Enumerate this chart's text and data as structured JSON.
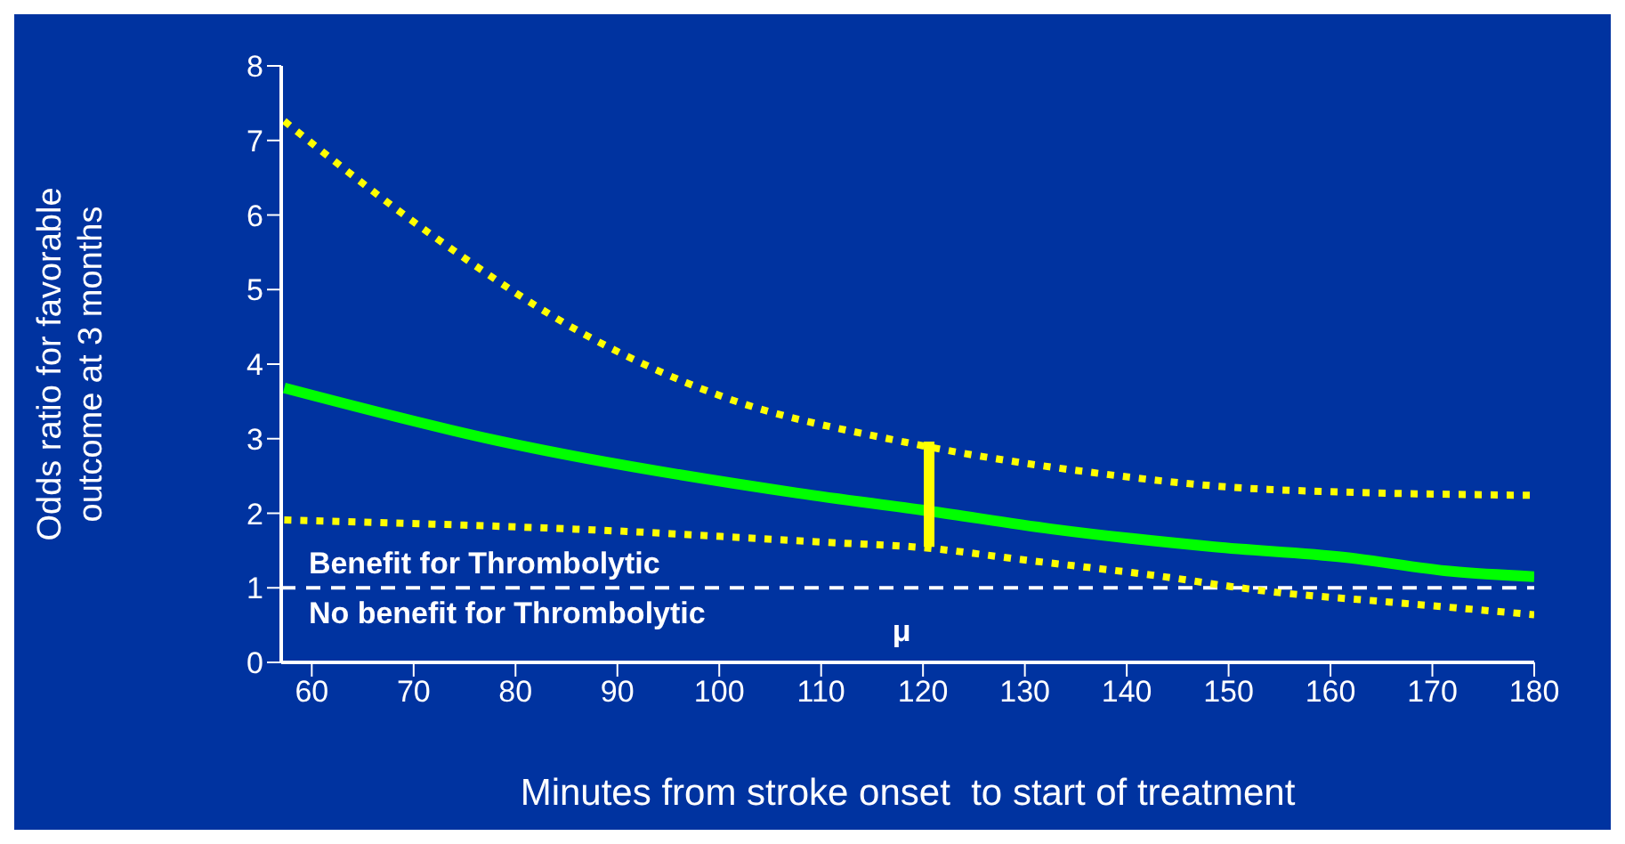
{
  "chart_data": {
    "type": "line",
    "xlabel": "Minutes from stroke onset  to start of treatment",
    "ylabel": "Odds ratio for favorable outcome at 3 months",
    "xlim": [
      57,
      180
    ],
    "xticks": [
      60,
      70,
      80,
      90,
      100,
      110,
      120,
      130,
      140,
      150,
      160,
      170,
      180
    ],
    "ylim": [
      0,
      8
    ],
    "yticks": [
      0,
      1,
      2,
      3,
      4,
      5,
      6,
      7,
      8
    ],
    "marker": "none",
    "series": [
      {
        "color": "#ffff00",
        "line_style": "dotted",
        "x": [
          57.3,
          71.3,
          86.5,
          100.4,
          118,
          136.4,
          153.9,
          180
        ],
        "values": [
          7.26,
          5.78,
          4.42,
          3.56,
          2.96,
          2.55,
          2.32,
          2.24
        ]
      },
      {
        "color": "#00ff00",
        "line_style": "solid",
        "x": [
          57.3,
          78,
          107.7,
          120.6,
          132.6,
          148.6,
          161.4,
          171.9,
          180
        ],
        "values": [
          3.68,
          2.98,
          2.27,
          2.03,
          1.79,
          1.55,
          1.41,
          1.22,
          1.15
        ]
      },
      {
        "color": "#ffff00",
        "line_style": "dotted",
        "x": [
          57.3,
          88.7,
          112,
          119,
          130.8,
          142.5,
          154,
          165.7,
          180
        ],
        "values": [
          1.91,
          1.77,
          1.6,
          1.55,
          1.36,
          1.17,
          0.95,
          0.81,
          0.64
        ]
      },
      {
        "color": "#ffff00",
        "line_style": "solid",
        "x": [
          120.6,
          120.6
        ],
        "values": [
          1.55,
          2.96
        ]
      }
    ],
    "ref_lines": [
      {
        "axis": "y",
        "value": 1,
        "color": "#ffffff",
        "line_style": "dashed"
      }
    ],
    "annotations": [
      "Benefit for Thrombolytic",
      "No benefit for Thrombolytic",
      "μ"
    ]
  }
}
